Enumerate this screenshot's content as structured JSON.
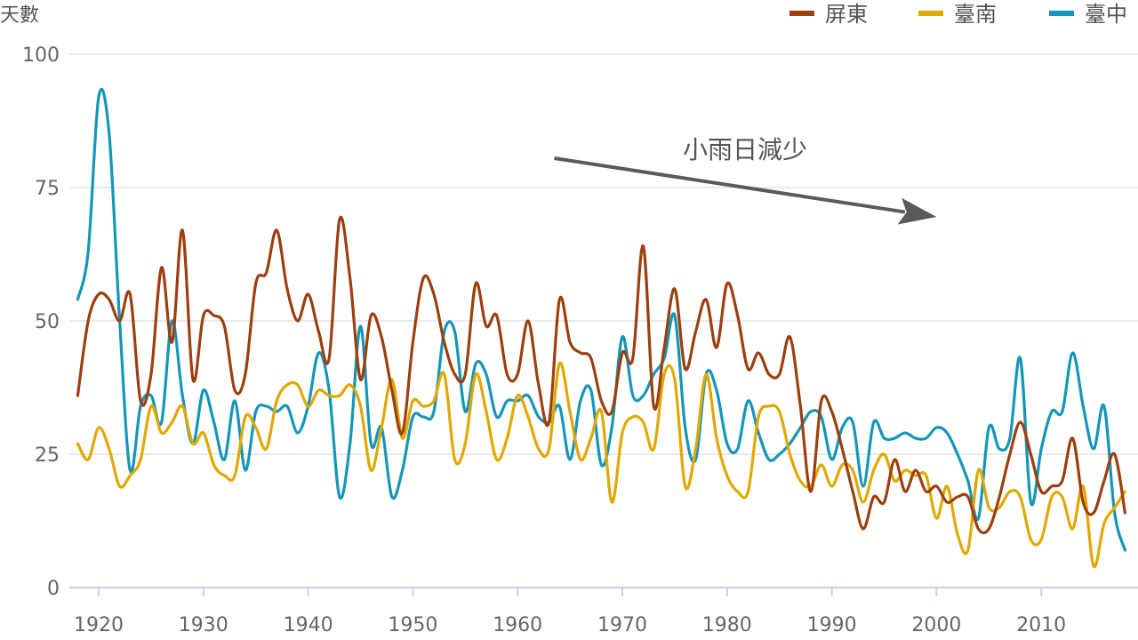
{
  "chart_data": {
    "type": "line",
    "ylabel": "天數",
    "xlabel": "",
    "xlim": [
      1918,
      2018
    ],
    "ylim": [
      0,
      100
    ],
    "y_ticks": [
      0,
      25,
      50,
      75,
      100
    ],
    "x_ticks": [
      1920,
      1930,
      1940,
      1950,
      1960,
      1970,
      1980,
      1990,
      2000,
      2010
    ],
    "grid": "horizontal",
    "legend_position": "top-right",
    "annotation": {
      "text": "小雨日減少",
      "arrow_from": [
        1963.5,
        80.5
      ],
      "arrow_to": [
        2000,
        69.5
      ]
    },
    "series": [
      {
        "name": "屏東",
        "color": "#9c3f0f",
        "x": [
          1918,
          1919,
          1920,
          1921,
          1922,
          1923,
          1924,
          1925,
          1926,
          1927,
          1928,
          1929,
          1930,
          1931,
          1932,
          1933,
          1934,
          1935,
          1936,
          1937,
          1938,
          1939,
          1940,
          1941,
          1942,
          1943,
          1944,
          1945,
          1946,
          1947,
          1948,
          1949,
          1950,
          1951,
          1952,
          1953,
          1954,
          1955,
          1956,
          1957,
          1958,
          1959,
          1960,
          1961,
          1962,
          1963,
          1964,
          1965,
          1966,
          1967,
          1968,
          1969,
          1970,
          1971,
          1972,
          1973,
          1974,
          1975,
          1976,
          1977,
          1978,
          1979,
          1980,
          1981,
          1982,
          1983,
          1984,
          1985,
          1986,
          1987,
          1988,
          1989,
          1990,
          1991,
          1992,
          1993,
          1994,
          1995,
          1996,
          1997,
          1998,
          1999,
          2000,
          2001,
          2002,
          2003,
          2004,
          2005,
          2006,
          2007,
          2008,
          2009,
          2010,
          2011,
          2012,
          2013,
          2014,
          2015,
          2016,
          2017,
          2018
        ],
        "values": [
          36,
          50,
          55,
          54,
          50,
          55,
          35,
          40,
          60,
          46,
          67,
          39,
          51,
          51,
          49,
          37,
          40,
          57,
          59,
          67,
          56,
          50,
          55,
          48,
          43,
          69,
          58,
          39,
          51,
          47,
          37,
          29,
          46,
          58,
          55,
          46,
          40,
          40,
          57,
          49,
          51,
          40,
          40,
          50,
          38,
          31,
          54,
          46,
          44,
          43,
          35,
          33,
          44,
          43,
          64,
          34,
          45,
          56,
          41,
          48,
          54,
          45,
          57,
          51,
          41,
          44,
          40,
          40,
          47,
          34,
          18,
          35,
          33,
          26,
          18,
          11,
          17,
          16,
          24,
          18,
          22,
          18,
          19,
          16,
          17,
          17,
          11,
          11,
          17,
          25,
          31,
          25,
          18,
          19,
          20,
          28,
          16,
          14,
          20,
          25,
          14
        ]
      },
      {
        "name": "臺南",
        "color": "#e0a800",
        "x": [
          1918,
          1919,
          1920,
          1921,
          1922,
          1923,
          1924,
          1925,
          1926,
          1927,
          1928,
          1929,
          1930,
          1931,
          1932,
          1933,
          1934,
          1935,
          1936,
          1937,
          1938,
          1939,
          1940,
          1941,
          1942,
          1943,
          1944,
          1945,
          1946,
          1947,
          1948,
          1949,
          1950,
          1951,
          1952,
          1953,
          1954,
          1955,
          1956,
          1957,
          1958,
          1959,
          1960,
          1961,
          1962,
          1963,
          1964,
          1965,
          1966,
          1967,
          1968,
          1969,
          1970,
          1971,
          1972,
          1973,
          1974,
          1975,
          1976,
          1977,
          1978,
          1979,
          1980,
          1981,
          1982,
          1983,
          1984,
          1985,
          1986,
          1987,
          1988,
          1989,
          1990,
          1991,
          1992,
          1993,
          1994,
          1995,
          1996,
          1997,
          1998,
          1999,
          2000,
          2001,
          2002,
          2003,
          2004,
          2005,
          2006,
          2007,
          2008,
          2009,
          2010,
          2011,
          2012,
          2013,
          2014,
          2015,
          2016,
          2017,
          2018
        ],
        "values": [
          27,
          24,
          30,
          26,
          19,
          21,
          24,
          34,
          29,
          31,
          34,
          27,
          29,
          23,
          21,
          21,
          32,
          30,
          26,
          35,
          38,
          38,
          34,
          37,
          36,
          36,
          38,
          34,
          22,
          30,
          39,
          28,
          35,
          34,
          35,
          40,
          24,
          27,
          40,
          33,
          24,
          28,
          36,
          32,
          26,
          26,
          42,
          33,
          24,
          28,
          33,
          16,
          29,
          32,
          31,
          26,
          40,
          39,
          19,
          26,
          40,
          28,
          21,
          18,
          18,
          32,
          34,
          33,
          25,
          20,
          19,
          23,
          19,
          23,
          22,
          16,
          22,
          25,
          20,
          22,
          21,
          21,
          13,
          19,
          10,
          7,
          22,
          15,
          15,
          18,
          17,
          9,
          9,
          17,
          17,
          11,
          19,
          4,
          12,
          15,
          18
        ]
      },
      {
        "name": "臺中",
        "color": "#1496b8",
        "x": [
          1918,
          1919,
          1920,
          1921,
          1922,
          1923,
          1924,
          1925,
          1926,
          1927,
          1928,
          1929,
          1930,
          1931,
          1932,
          1933,
          1934,
          1935,
          1936,
          1937,
          1938,
          1939,
          1940,
          1941,
          1942,
          1943,
          1944,
          1945,
          1946,
          1947,
          1948,
          1949,
          1950,
          1951,
          1952,
          1953,
          1954,
          1955,
          1956,
          1957,
          1958,
          1959,
          1960,
          1961,
          1962,
          1963,
          1964,
          1965,
          1966,
          1967,
          1968,
          1969,
          1970,
          1971,
          1972,
          1973,
          1974,
          1975,
          1976,
          1977,
          1978,
          1979,
          1980,
          1981,
          1982,
          1983,
          1984,
          1985,
          1986,
          1987,
          1988,
          1989,
          1990,
          1991,
          1992,
          1993,
          1994,
          1995,
          1996,
          1997,
          1998,
          1999,
          2000,
          2001,
          2002,
          2003,
          2004,
          2005,
          2006,
          2007,
          2008,
          2009,
          2010,
          2011,
          2012,
          2013,
          2014,
          2015,
          2016,
          2017,
          2018
        ],
        "values": [
          54,
          63,
          92,
          85,
          50,
          22,
          34,
          36,
          31,
          50,
          36,
          27,
          37,
          31,
          24,
          35,
          22,
          33,
          34,
          33,
          34,
          29,
          34,
          44,
          37,
          17,
          27,
          49,
          27,
          30,
          17,
          22,
          32,
          32,
          33,
          48,
          48,
          33,
          42,
          40,
          32,
          35,
          35,
          36,
          32,
          31,
          34,
          24,
          35,
          37,
          23,
          30,
          47,
          36,
          36,
          40,
          43,
          51,
          30,
          24,
          40,
          37,
          27,
          26,
          35,
          29,
          24,
          25,
          27,
          30,
          33,
          32,
          24,
          30,
          31,
          19,
          31,
          28,
          28,
          29,
          28,
          28,
          30,
          29,
          25,
          20,
          13,
          30,
          26,
          28,
          43,
          16,
          26,
          33,
          33,
          44,
          34,
          26,
          34,
          14,
          7
        ]
      }
    ]
  }
}
